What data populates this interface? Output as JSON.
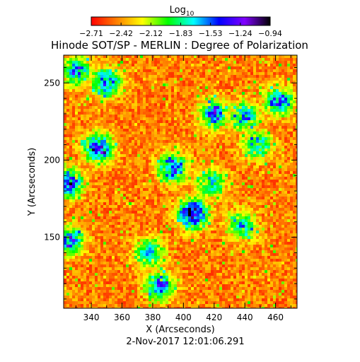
{
  "colorbar": {
    "label": "Log",
    "label_sub": "10",
    "ticks": [
      "-2.71",
      "-2.42",
      "-2.12",
      "-1.83",
      "-1.53",
      "-1.24",
      "-0.94"
    ]
  },
  "chart_data": {
    "type": "heatmap",
    "title": "Hinode SOT/SP - MERLIN : Degree of Polarization",
    "xlabel": "X (Arcseconds)",
    "ylabel": "Y (Arcseconds)",
    "xlim": [
      322,
      474
    ],
    "ylim": [
      104,
      268
    ],
    "xticks": [
      340,
      360,
      380,
      400,
      420,
      440,
      460
    ],
    "yticks": [
      150,
      200,
      250
    ],
    "colorbar_range": [
      -2.71,
      -0.94
    ],
    "colorbar_scale": "log10",
    "colormap": [
      "#ff0000",
      "#ff8000",
      "#ffff00",
      "#00ff00",
      "#00ffff",
      "#0000ff",
      "#8000ff",
      "#000000"
    ],
    "features": [
      {
        "x": 406,
        "y": 165,
        "level": -0.94
      },
      {
        "x": 393,
        "y": 195,
        "level": -1.3
      },
      {
        "x": 345,
        "y": 208,
        "level": -1.2
      },
      {
        "x": 350,
        "y": 250,
        "level": -1.4
      },
      {
        "x": 330,
        "y": 258,
        "level": -1.5
      },
      {
        "x": 325,
        "y": 185,
        "level": -1.3
      },
      {
        "x": 327,
        "y": 148,
        "level": -1.5
      },
      {
        "x": 378,
        "y": 140,
        "level": -1.6
      },
      {
        "x": 385,
        "y": 118,
        "level": -1.5
      },
      {
        "x": 420,
        "y": 230,
        "level": -1.4
      },
      {
        "x": 440,
        "y": 228,
        "level": -1.5
      },
      {
        "x": 462,
        "y": 238,
        "level": -1.4
      },
      {
        "x": 438,
        "y": 158,
        "level": -1.6
      },
      {
        "x": 448,
        "y": 210,
        "level": -1.6
      },
      {
        "x": 418,
        "y": 185,
        "level": -1.6
      }
    ]
  },
  "footer": {
    "timestamp": "2-Nov-2017 12:01:06.291"
  }
}
